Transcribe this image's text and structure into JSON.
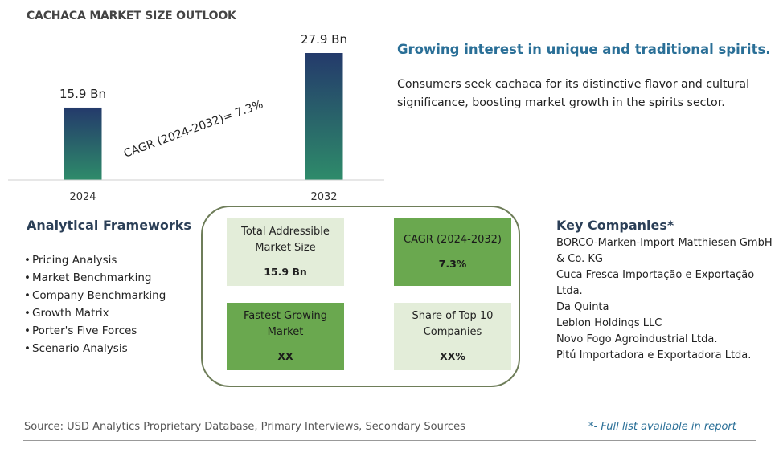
{
  "header": {
    "title": "CACHACA MARKET SIZE OUTLOOK"
  },
  "chart_data": {
    "type": "bar",
    "categories": [
      "2024",
      "2032"
    ],
    "values": [
      15.9,
      27.9
    ],
    "value_labels": [
      "15.9 Bn",
      "27.9 Bn"
    ],
    "unit": "Bn",
    "annotation": "CAGR (2024-2032)=  7.3%",
    "colors": {
      "bar_top": "#243a6b",
      "bar_bottom": "#2e8b6a"
    }
  },
  "insight": {
    "headline": "Growing interest in unique and traditional spirits.",
    "description": "Consumers seek cachaca for its distinctive flavor and cultural significance, boosting market growth in the spirits sector."
  },
  "frameworks": {
    "heading": "Analytical Frameworks",
    "items": [
      "Pricing Analysis",
      "Market Benchmarking",
      "Company Benchmarking",
      "Growth Matrix",
      "Porter's Five Forces",
      "Scenario Analysis"
    ]
  },
  "metrics": [
    {
      "label": "Total Addressible Market Size",
      "value": "15.9 Bn",
      "style": "light"
    },
    {
      "label": "CAGR (2024-2032)",
      "value": "7.3%",
      "style": "dark"
    },
    {
      "label": "Fastest Growing Market",
      "value": "XX",
      "style": "dark"
    },
    {
      "label": "Share of Top 10 Companies",
      "value": "XX%",
      "style": "light"
    }
  ],
  "key_companies": {
    "heading": "Key Companies*",
    "items": [
      "BORCO-Marken-Import Matthiesen GmbH & Co. KG",
      "Cuca Fresca Importação e Exportação Ltda.",
      "Da Quinta",
      "Leblon Holdings LLC",
      "Novo Fogo Agroindustrial Ltda.",
      "Pitú Importadora e Exportadora Ltda."
    ]
  },
  "footer": {
    "source": "Source: USD Analytics Proprietary Database, Primary Interviews, Secondary Sources",
    "note": "*- Full list available in report"
  }
}
